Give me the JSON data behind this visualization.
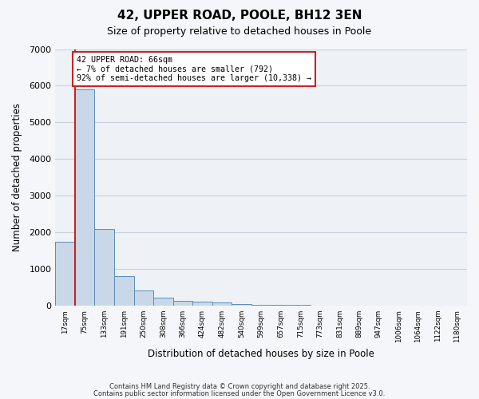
{
  "title1": "42, UPPER ROAD, POOLE, BH12 3EN",
  "title2": "Size of property relative to detached houses in Poole",
  "xlabel": "Distribution of detached houses by size in Poole",
  "ylabel": "Number of detached properties",
  "bin_labels": [
    "17sqm",
    "75sqm",
    "133sqm",
    "191sqm",
    "250sqm",
    "308sqm",
    "366sqm",
    "424sqm",
    "482sqm",
    "540sqm",
    "599sqm",
    "657sqm",
    "715sqm",
    "773sqm",
    "831sqm",
    "889sqm",
    "947sqm",
    "1006sqm",
    "1064sqm",
    "1122sqm",
    "1180sqm"
  ],
  "bar_values": [
    1750,
    5900,
    2100,
    800,
    420,
    220,
    120,
    100,
    80,
    50,
    20,
    15,
    10,
    8,
    5,
    3,
    5,
    3,
    2,
    2,
    0
  ],
  "bar_color": "#c8d8e8",
  "bar_edge_color": "#5b8db8",
  "grid_color": "#c8d0dc",
  "background_color": "#eef2f7",
  "annotation_text": "42 UPPER ROAD: 66sqm\n← 7% of detached houses are smaller (792)\n92% of semi-detached houses are larger (10,338) →",
  "annotation_box_facecolor": "#ffffff",
  "annotation_box_edgecolor": "#cc2222",
  "property_line_color": "#cc2222",
  "property_line_x": 0.5,
  "ylim": [
    0,
    7000
  ],
  "yticks": [
    0,
    1000,
    2000,
    3000,
    4000,
    5000,
    6000,
    7000
  ],
  "footer1": "Contains HM Land Registry data © Crown copyright and database right 2025.",
  "footer2": "Contains public sector information licensed under the Open Government Licence v3.0.",
  "fig_facecolor": "#f4f6f9"
}
